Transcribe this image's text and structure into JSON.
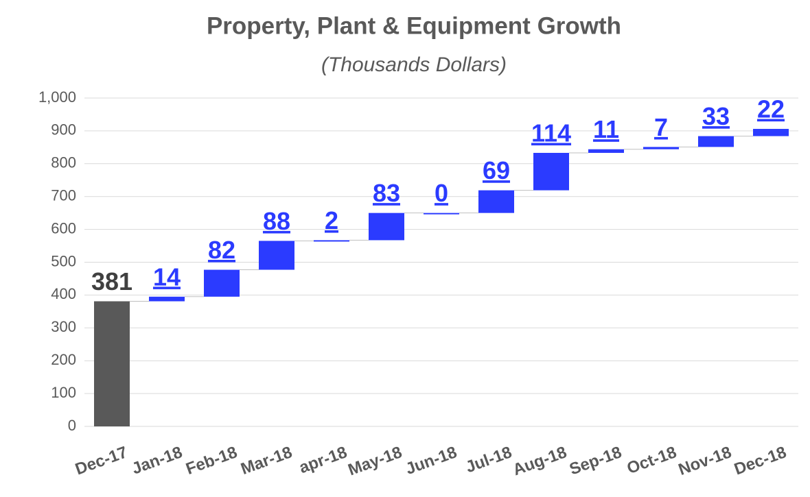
{
  "chart_data": {
    "type": "waterfall",
    "title": "Property, Plant & Equipment Growth",
    "subtitle": "(Thousands Dollars)",
    "categories": [
      "Dec-17",
      "Jan-18",
      "Feb-18",
      "Mar-18",
      "apr-18",
      "May-18",
      "Jun-18",
      "Jul-18",
      "Aug-18",
      "Sep-18",
      "Oct-18",
      "Nov-18",
      "Dec-18"
    ],
    "values": [
      381,
      14,
      82,
      88,
      2,
      83,
      0,
      69,
      114,
      11,
      7,
      33,
      22
    ],
    "colors": [
      "#595959",
      "#2b3bff",
      "#2b3bff",
      "#2b3bff",
      "#2b3bff",
      "#2b3bff",
      "#2b3bff",
      "#2b3bff",
      "#2b3bff",
      "#2b3bff",
      "#2b3bff",
      "#2b3bff",
      "#2b3bff"
    ],
    "label_colors": [
      "#404040",
      "#2b3bff",
      "#2b3bff",
      "#2b3bff",
      "#2b3bff",
      "#2b3bff",
      "#2b3bff",
      "#2b3bff",
      "#2b3bff",
      "#2b3bff",
      "#2b3bff",
      "#2b3bff",
      "#2b3bff"
    ],
    "ylim": [
      0,
      1000
    ],
    "yticks": [
      0,
      100,
      200,
      300,
      400,
      500,
      600,
      700,
      800,
      900,
      {
        "value": 1000,
        "label": "1,000"
      }
    ],
    "grid": true
  }
}
